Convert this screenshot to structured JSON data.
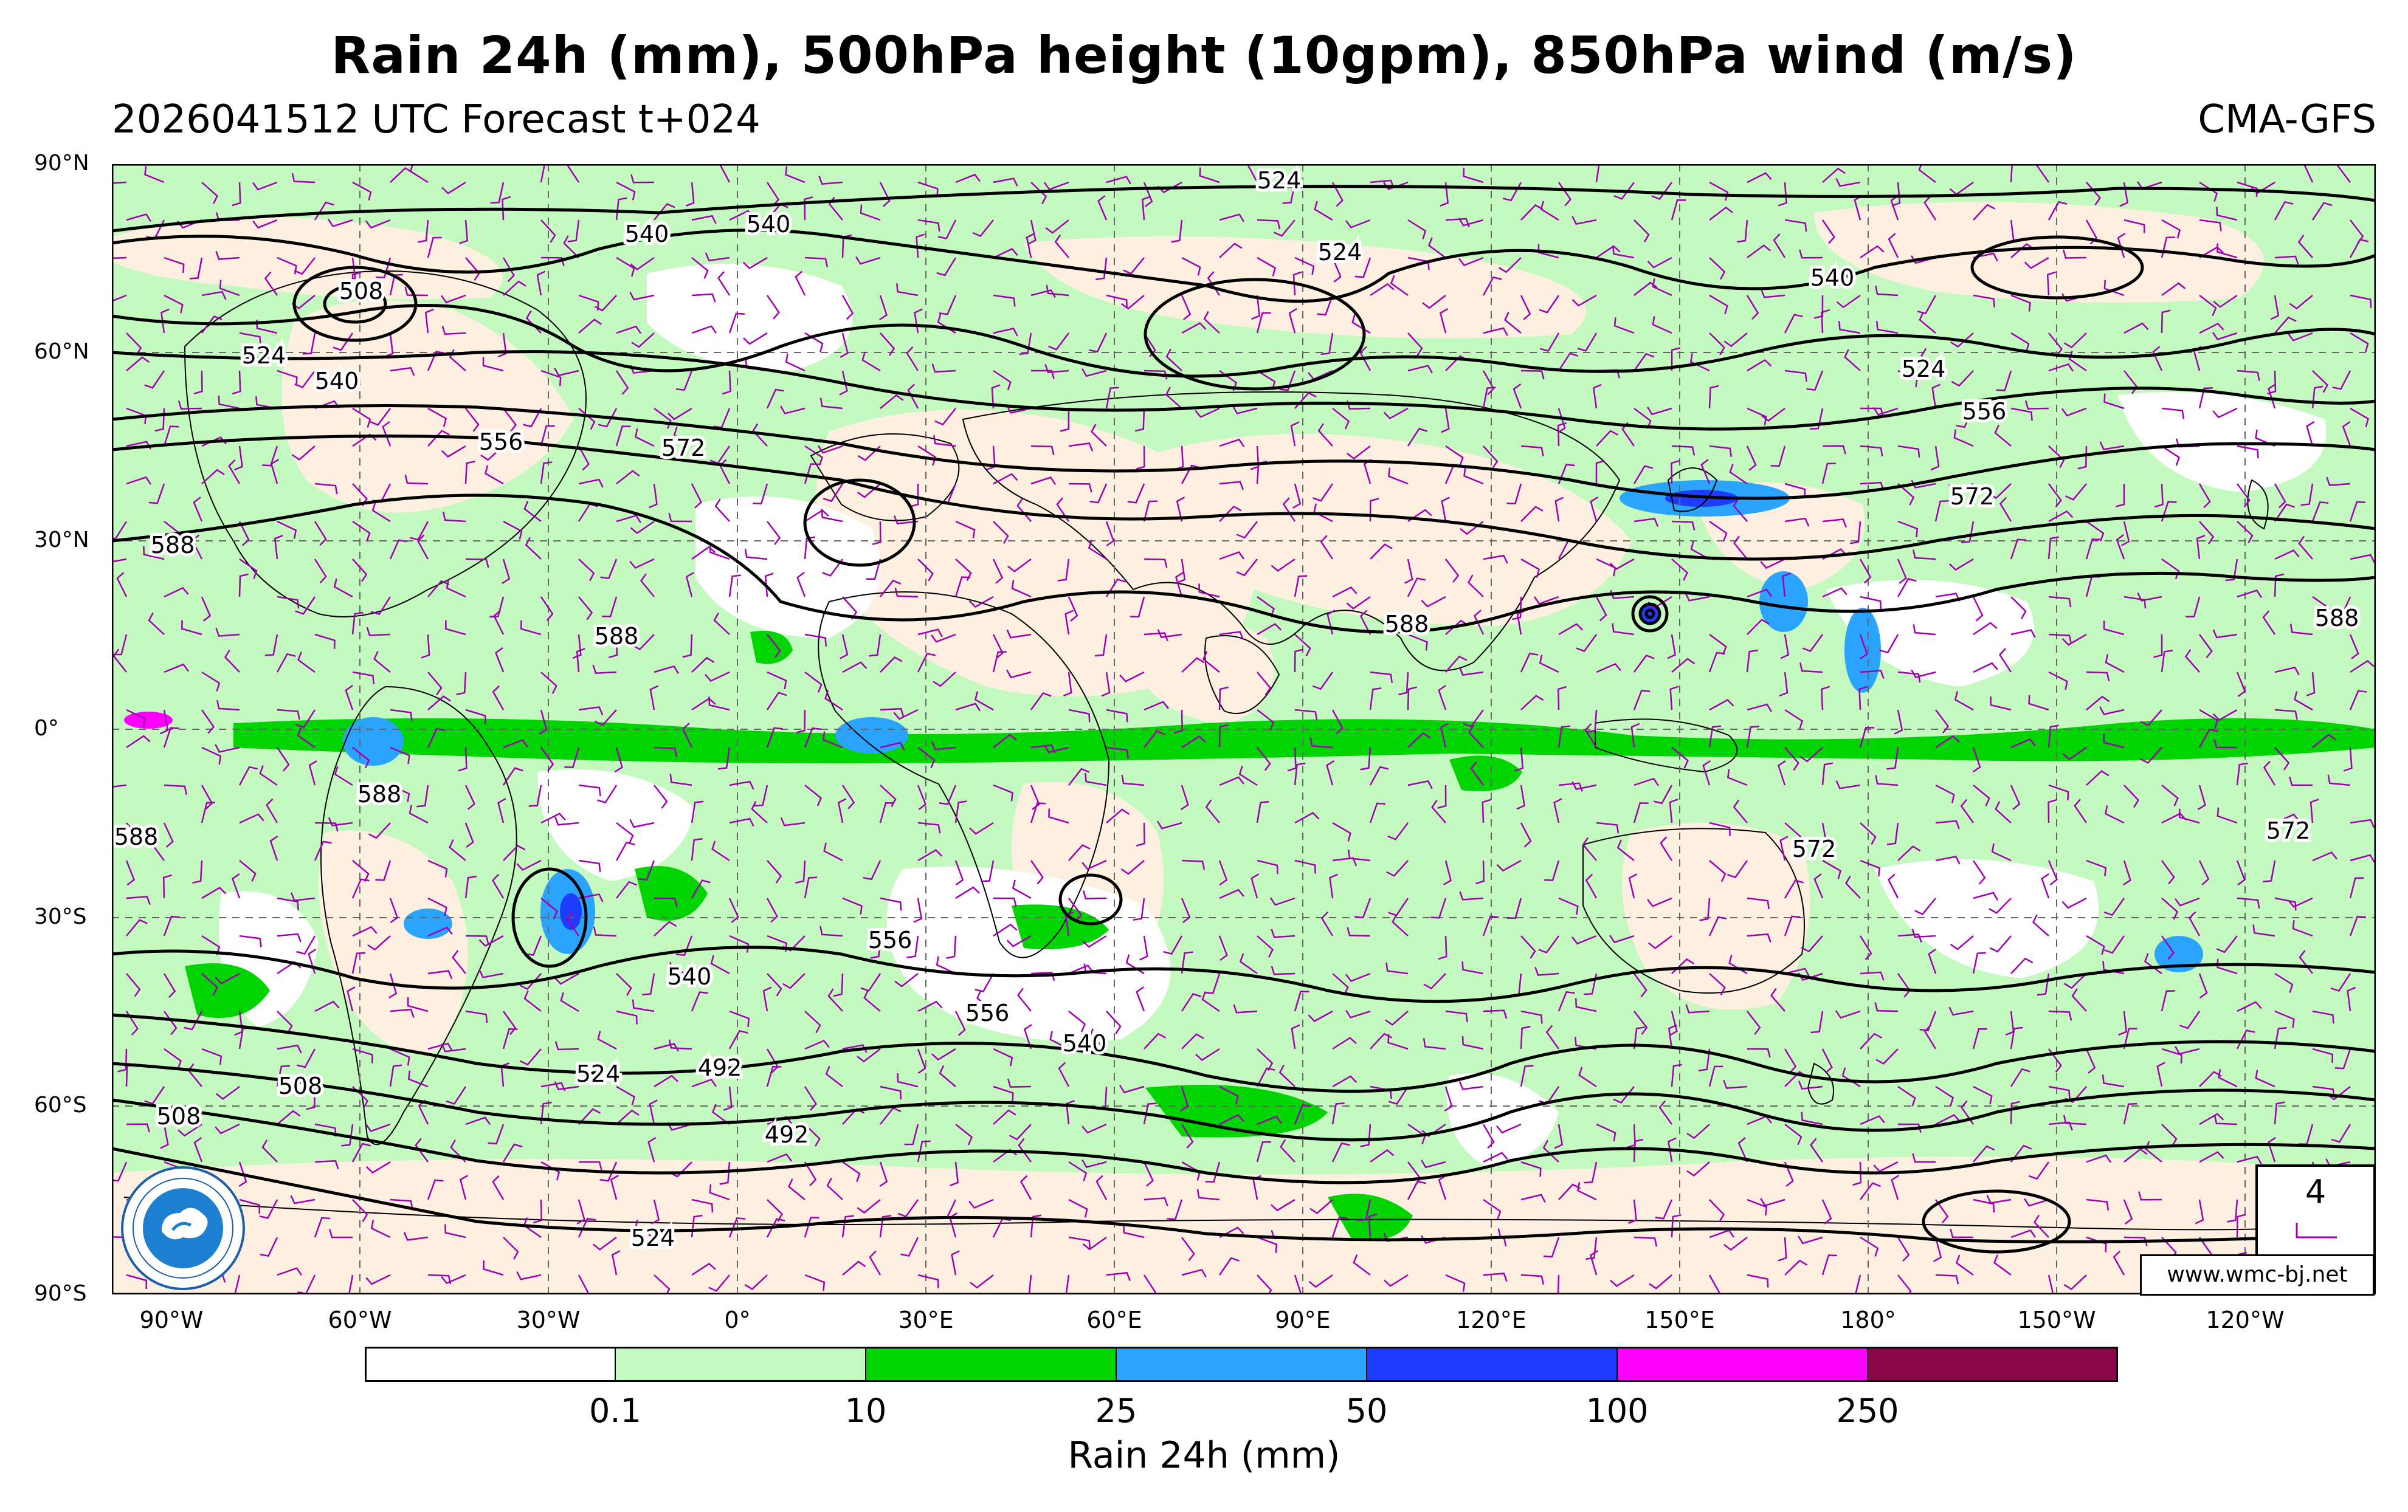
{
  "header": {
    "title": "Rain 24h (mm), 500hPa height (10gpm), 850hPa wind (m/s)",
    "run_info": "2026041512 UTC Forecast t+024",
    "model": "CMA-GFS"
  },
  "axes": {
    "lat_labels": [
      "90°N",
      "60°N",
      "30°N",
      "0°",
      "30°S",
      "60°S",
      "90°S"
    ],
    "lon_labels": [
      "90°W",
      "60°W",
      "30°W",
      "0°",
      "30°E",
      "60°E",
      "90°E",
      "120°E",
      "150°E",
      "180°",
      "150°W",
      "120°W"
    ]
  },
  "contour_labels": [
    "524",
    "540",
    "540",
    "524",
    "540",
    "508",
    "524",
    "540",
    "524",
    "556",
    "572",
    "556",
    "572",
    "588",
    "588",
    "588",
    "588",
    "588",
    "588",
    "572",
    "572",
    "556",
    "540",
    "556",
    "540",
    "524",
    "492",
    "508",
    "508",
    "492",
    "524"
  ],
  "colorbar": {
    "label": "Rain 24h (mm)",
    "ticks": [
      "0.1",
      "10",
      "25",
      "50",
      "100",
      "250"
    ],
    "colors": [
      "#ffffff",
      "#c4fac0",
      "#00d400",
      "#2aa4ff",
      "#1c3cff",
      "#ff00ff",
      "#8b0648"
    ]
  },
  "wind_scale": {
    "value": "4"
  },
  "footer": {
    "url": "www.wmc-bj.net"
  },
  "colors": {
    "land": "#fdf0e0",
    "rain_light": "#c4fac0",
    "rain_moderate": "#00d400",
    "rain_heavy": "#2aa4ff",
    "barb": "#a000b0"
  }
}
